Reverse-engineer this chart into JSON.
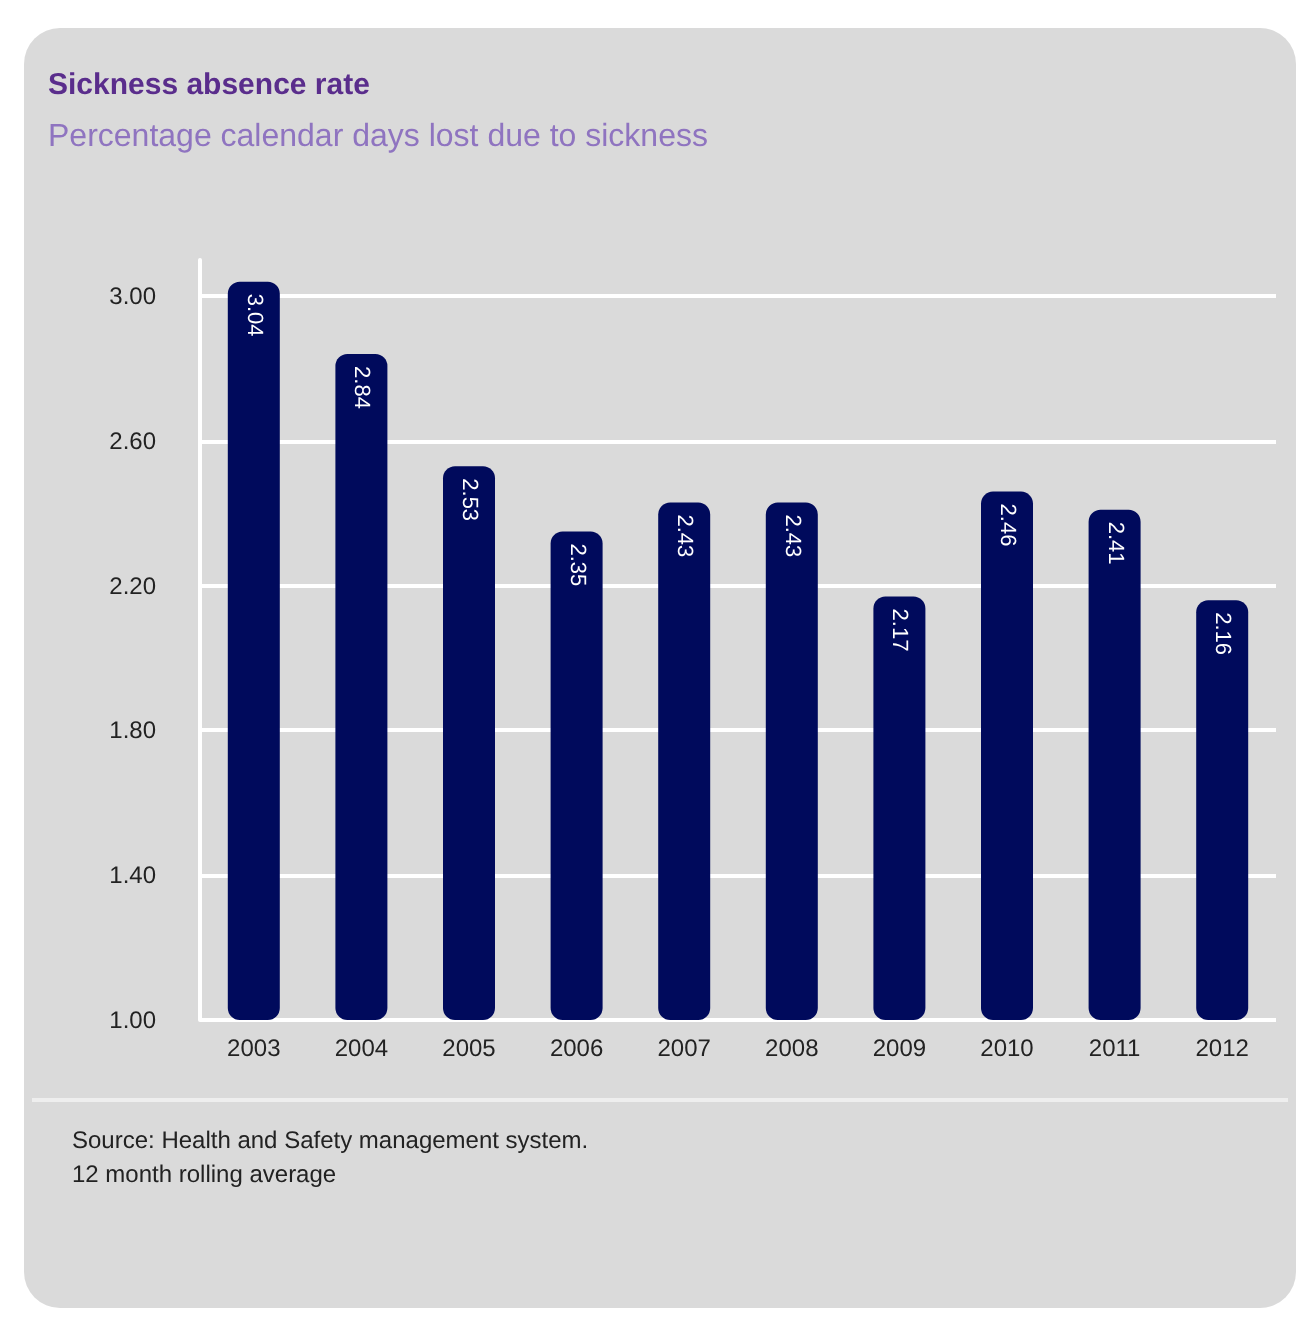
{
  "chart_data": {
    "type": "bar",
    "title": "Sickness absence rate",
    "subtitle": "Percentage  calendar days lost due to sickness",
    "categories": [
      "2003",
      "2004",
      "2005",
      "2006",
      "2007",
      "2008",
      "2009",
      "2010",
      "2011",
      "2012"
    ],
    "values": [
      3.04,
      2.84,
      2.53,
      2.35,
      2.43,
      2.43,
      2.17,
      2.46,
      2.41,
      2.16
    ],
    "color": "#000a5c",
    "ylim": [
      1.0,
      3.1
    ],
    "yticks": [
      {
        "value": 1.0,
        "label": "1.00"
      },
      {
        "value": 1.4,
        "label": "1.40"
      },
      {
        "value": 1.8,
        "label": "1.80"
      },
      {
        "value": 2.2,
        "label": "2.20"
      },
      {
        "value": 2.6,
        "label": "2.60"
      },
      {
        "value": 3.0,
        "label": "3.00"
      }
    ],
    "grid": "y",
    "data_labels": true,
    "annotations": [
      "Source: Health and Safety management system.",
      "12 month rolling average"
    ]
  }
}
